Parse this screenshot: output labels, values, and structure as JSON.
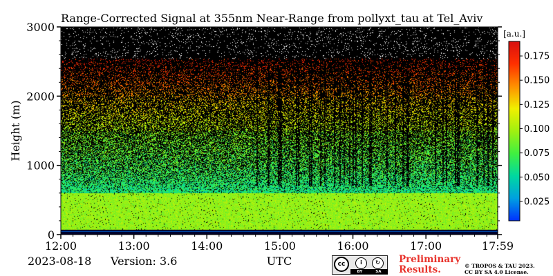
{
  "chart_data": {
    "type": "heatmap",
    "title": "Range-Corrected Signal at 355nm Near-Range from pollyxt_tau at Tel_Aviv",
    "xlabel": "UTC",
    "ylabel": "Height (m)",
    "x_tick_labels": [
      "12:00",
      "13:00",
      "14:00",
      "15:00",
      "16:00",
      "17:00",
      "17:59"
    ],
    "x_tick_values_hours": [
      12,
      13,
      14,
      15,
      16,
      17,
      17.983
    ],
    "xlim_hours": [
      12,
      17.983
    ],
    "y_tick_labels": [
      "0",
      "1000",
      "2000",
      "3000"
    ],
    "y_tick_values": [
      0,
      1000,
      2000,
      3000
    ],
    "ylim": [
      0,
      3000
    ],
    "colorbar": {
      "unit_label": "[a.u.]",
      "tick_labels": [
        "0.025",
        "0.050",
        "0.075",
        "0.100",
        "0.125",
        "0.150",
        "0.175"
      ],
      "tick_values": [
        0.025,
        0.05,
        0.075,
        0.1,
        0.125,
        0.15,
        0.175
      ],
      "range": [
        0.005,
        0.19
      ],
      "colormap": [
        "#0030ff",
        "#00a0e0",
        "#00d8a0",
        "#40f040",
        "#a0f010",
        "#f0f000",
        "#ff9000",
        "#ff3000",
        "#d81010"
      ]
    },
    "profile_description_layers": [
      {
        "height_from": 0,
        "height_to": 60,
        "value": 0.005
      },
      {
        "height_from": 60,
        "height_to": 600,
        "value": 0.1
      },
      {
        "height_from": 600,
        "height_to": 1000,
        "value": 0.06
      },
      {
        "height_from": 1000,
        "height_to": 2000,
        "value": 0.095
      },
      {
        "height_from": 2000,
        "height_to": 2500,
        "value": 0.16
      },
      {
        "height_from": 2500,
        "height_to": 3000,
        "value": 0.0
      }
    ],
    "grid": false
  },
  "footer": {
    "date": "2023-08-18",
    "version": "Version: 3.6",
    "preliminary_line1": "Preliminary",
    "preliminary_line2": "Results.",
    "copyright_line1": "© TROPOS & TAU 2023.",
    "copyright_line2": "CC BY SA 4.0 License.",
    "cc_badge_text": "cc",
    "cc_by": "BY",
    "cc_sa": "SA"
  }
}
